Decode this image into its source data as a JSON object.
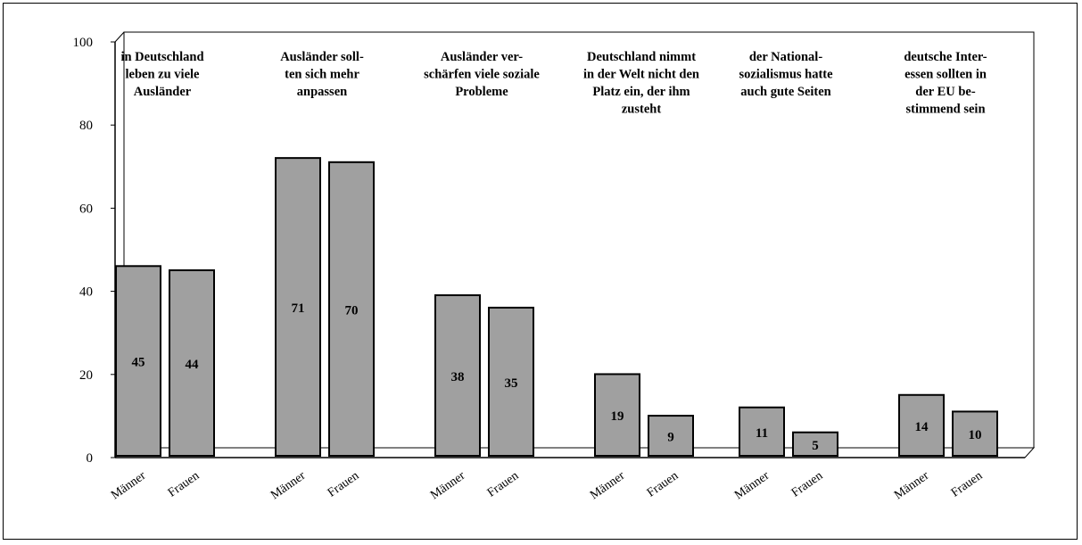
{
  "chart_data": {
    "type": "bar",
    "ylim": [
      0,
      100
    ],
    "yticks": [
      0,
      20,
      40,
      60,
      80,
      100
    ],
    "grid": false,
    "categories": [
      "in Deutschland leben zu viele Ausländer",
      "Ausländer sollten sich mehr anpassen",
      "Ausländer verschärfen viele soziale Probleme",
      "Deutschland nimmt in der Welt nicht den Platz ein, der ihm zusteht",
      "der Nationalsozialismus hatte auch gute Seiten",
      "deutsche Interessen sollten in der EU bestimmend sein"
    ],
    "category_label_lines": [
      [
        "in Deutschland",
        "leben zu viele",
        "Ausländer"
      ],
      [
        "Ausländer soll-",
        "ten sich mehr",
        "anpassen"
      ],
      [
        "Ausländer ver-",
        "schärfen viele soziale",
        "Probleme"
      ],
      [
        "Deutschland nimmt",
        "in der Welt nicht den",
        "Platz ein, der ihm",
        "zusteht"
      ],
      [
        "der National-",
        "sozialismus hatte",
        "auch gute Seiten"
      ],
      [
        "deutsche Inter-",
        "essen sollten in",
        "der EU be-",
        "stimmend sein"
      ]
    ],
    "x_labels": [
      "Männer",
      "Frauen"
    ],
    "series": [
      {
        "name": "Männer",
        "values": [
          45,
          71,
          38,
          19,
          11,
          14
        ]
      },
      {
        "name": "Frauen",
        "values": [
          44,
          70,
          35,
          9,
          5,
          10
        ]
      }
    ],
    "bar_color": "#a0a0a0"
  }
}
